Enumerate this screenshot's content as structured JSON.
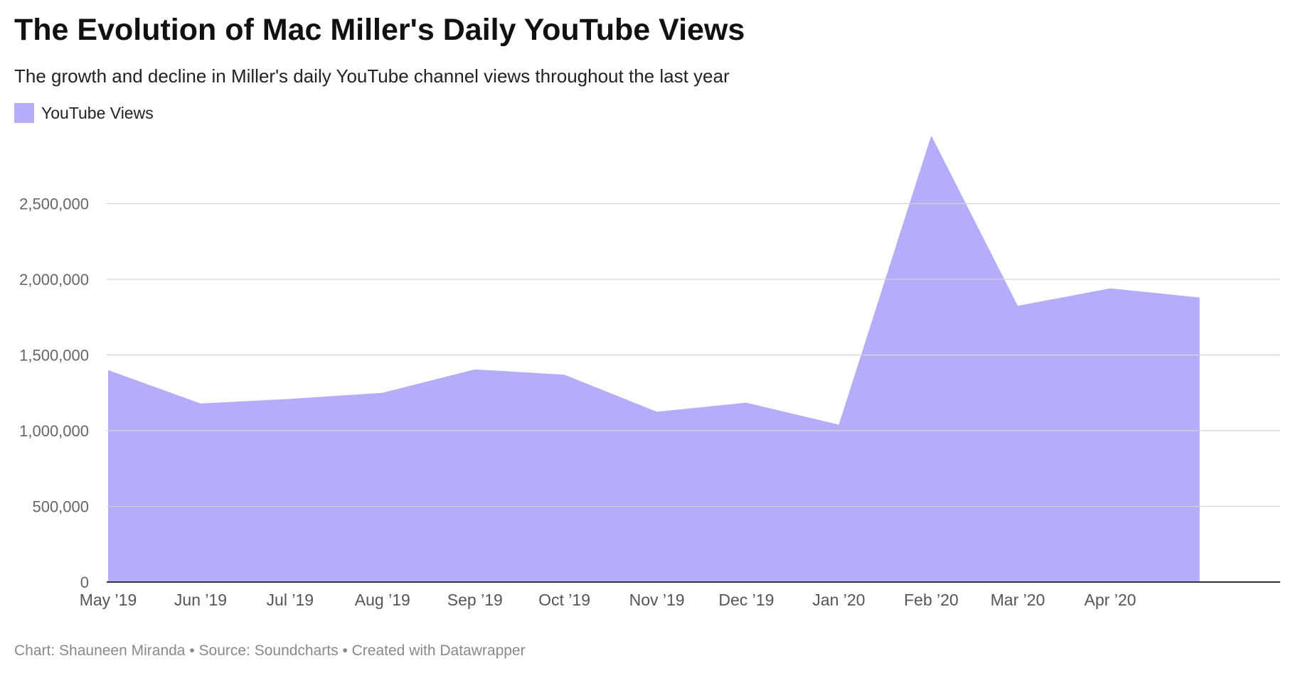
{
  "title": "The Evolution of Mac Miller's Daily YouTube Views",
  "subtitle": "The growth and decline in Miller's daily YouTube channel views throughout the last year",
  "legend": {
    "label": "YouTube Views",
    "color": "#b3adfa"
  },
  "footer": "Chart: Shauneen Miranda • Source: Soundcharts • Created with Datawrapper",
  "chart_data": {
    "type": "area",
    "title": "The Evolution of Mac Miller's Daily YouTube Views",
    "subtitle": "The growth and decline in Miller's daily YouTube channel views throughout the last year",
    "xlabel": "",
    "ylabel": "",
    "x_start": "2019-05-01",
    "x_end": "2020-05-28",
    "ylim": [
      0,
      3000000
    ],
    "yticks": [
      0,
      500000,
      1000000,
      1500000,
      2000000,
      2500000
    ],
    "ytick_labels": [
      "0",
      "500,000",
      "1,000,000",
      "1,500,000",
      "2,000,000",
      "2,500,000"
    ],
    "xticks": [
      "2019-05-01",
      "2019-06-01",
      "2019-07-01",
      "2019-08-01",
      "2019-09-01",
      "2019-10-01",
      "2019-11-01",
      "2019-12-01",
      "2020-01-01",
      "2020-02-01",
      "2020-03-01",
      "2020-04-01"
    ],
    "xtick_labels": [
      "May ’19",
      "Jun ’19",
      "Jul ’19",
      "Aug ’19",
      "Sep ’19",
      "Oct ’19",
      "Nov ’19",
      "Dec ’19",
      "Jan ’20",
      "Feb ’20",
      "Mar ’20",
      "Apr ’20"
    ],
    "grid": true,
    "legend_position": "top-left",
    "series": [
      {
        "name": "YouTube Views",
        "color": "#b3adfa",
        "points": [
          {
            "x": "2019-05-01",
            "y": 1400000
          },
          {
            "x": "2019-06-01",
            "y": 1180000
          },
          {
            "x": "2019-07-01",
            "y": 1210000
          },
          {
            "x": "2019-08-01",
            "y": 1250000
          },
          {
            "x": "2019-09-01",
            "y": 1405000
          },
          {
            "x": "2019-10-01",
            "y": 1370000
          },
          {
            "x": "2019-11-01",
            "y": 1125000
          },
          {
            "x": "2019-12-01",
            "y": 1185000
          },
          {
            "x": "2020-01-01",
            "y": 1040000
          },
          {
            "x": "2020-02-01",
            "y": 2950000
          },
          {
            "x": "2020-03-01",
            "y": 1825000
          },
          {
            "x": "2020-04-01",
            "y": 1940000
          },
          {
            "x": "2020-05-01",
            "y": 1880000
          }
        ]
      }
    ]
  }
}
